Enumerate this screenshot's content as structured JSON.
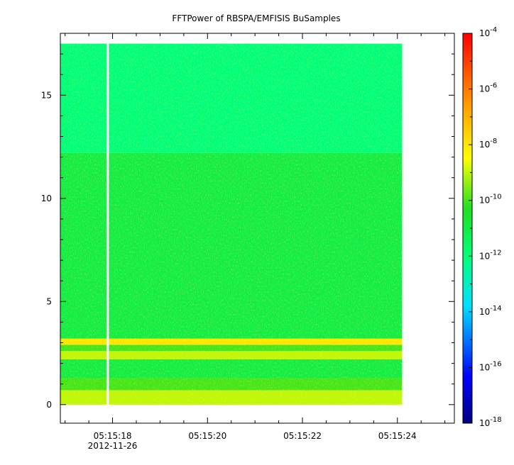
{
  "chart_data": {
    "type": "heatmap",
    "title": "FFTPower of RBSPA/EMFISIS  BuSamples",
    "xlabel": "",
    "ylabel": "",
    "x_axis": {
      "type": "time",
      "range": [
        "05:15:16.9",
        "05:15:25.2"
      ],
      "ticks": [
        "05:15:18",
        "05:15:20",
        "05:15:22",
        "05:15:24"
      ],
      "date_label": "2012-11-26"
    },
    "y_axis": {
      "range": [
        -0.9,
        18.0
      ],
      "ticks": [
        "0",
        "5",
        "10",
        "15"
      ]
    },
    "colorbar": {
      "scale": "log",
      "range": [
        1e-18,
        0.0001
      ],
      "ticks": [
        {
          "base": "10",
          "exp": "-4"
        },
        {
          "base": "10",
          "exp": "-6"
        },
        {
          "base": "10",
          "exp": "-8"
        },
        {
          "base": "10",
          "exp": "-10"
        },
        {
          "base": "10",
          "exp": "-12"
        },
        {
          "base": "10",
          "exp": "-14"
        },
        {
          "base": "10",
          "exp": "-16"
        },
        {
          "base": "10",
          "exp": "-18"
        }
      ],
      "colormap": "rainbow"
    },
    "data_extent": {
      "x": [
        "05:15:16.9",
        "05:15:24.1"
      ],
      "y": [
        0,
        17.5
      ],
      "data_gap_x": "05:15:17.9"
    },
    "bands": [
      {
        "y": [
          0,
          0.7
        ],
        "level": 1e-09
      },
      {
        "y": [
          0.7,
          1.3
        ],
        "level": 1e-10
      },
      {
        "y": [
          1.3,
          2.2
        ],
        "level": 1e-11
      },
      {
        "y": [
          2.2,
          2.6
        ],
        "level": 1e-09
      },
      {
        "y": [
          2.6,
          2.9
        ],
        "level": 1e-10
      },
      {
        "y": [
          2.9,
          3.2
        ],
        "level": 1e-08
      },
      {
        "y": [
          3.2,
          12.2
        ],
        "level": 1e-11
      },
      {
        "y": [
          12.2,
          17.5
        ],
        "level": 1e-12
      }
    ]
  }
}
